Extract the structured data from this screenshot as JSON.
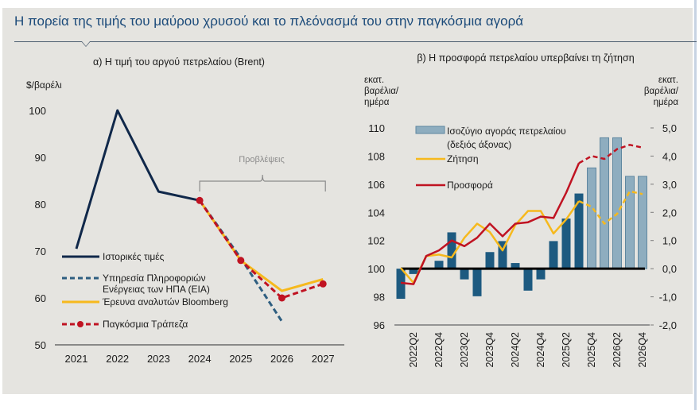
{
  "page": {
    "title": "Η πορεία της τιμής του μαύρου χρυσού και το πλεόνασμά του στην παγκόσμια αγορά"
  },
  "chart_data": [
    {
      "type": "line",
      "title": "α) Η τιμή του αργού πετρελαίου (Brent)",
      "ylabel": "$/βαρέλι",
      "xlabel": "",
      "ylim": [
        50,
        100
      ],
      "yticks": [
        "100",
        "90",
        "80",
        "70",
        "60",
        "50"
      ],
      "ytick_values": [
        100,
        90,
        80,
        70,
        60,
        50
      ],
      "x": [
        "2021",
        "2022",
        "2023",
        "2024",
        "2025",
        "2026",
        "2027"
      ],
      "annotation": "Προβλέψεις",
      "annotation_span": [
        "2024",
        "2027"
      ],
      "legend_position": "left",
      "series": [
        {
          "name": "Ιστορικές τιμές",
          "style": "solid",
          "color": "#10284a",
          "values": [
            70.5,
            100,
            82.7,
            80.8,
            null,
            null,
            null
          ]
        },
        {
          "name": "Υπηρεσία Πληροφοριών Ενέργειας των ΗΠΑ (EIA)",
          "style": "dashed",
          "color": "#2e5e80",
          "values": [
            null,
            null,
            null,
            80.8,
            68.5,
            55,
            null
          ]
        },
        {
          "name": "Έρευνα αναλυτών Bloomberg",
          "style": "solid",
          "color": "#f6b91d",
          "values": [
            null,
            null,
            null,
            80.8,
            68,
            61.5,
            64
          ]
        },
        {
          "name": "Παγκόσμια Τράπεζα",
          "style": "dashed-markers",
          "color": "#c01322",
          "values": [
            null,
            null,
            null,
            80.8,
            68,
            60,
            63
          ]
        }
      ]
    },
    {
      "type": "bar",
      "title": "β) Η προσφορά πετρελαίου υπερβαίνει τη ζήτηση",
      "ylabel_left": "εκατ. βαρέλια/ ημέρα",
      "ylabel_right": "εκατ. βαρέλια/ ημέρα",
      "ylim_left": [
        96,
        110
      ],
      "ylim_right": [
        -2.0,
        5.0
      ],
      "yticks_left": [
        "110",
        "108",
        "106",
        "104",
        "102",
        "100",
        "98",
        "96"
      ],
      "ytick_values_left": [
        110,
        108,
        106,
        104,
        102,
        100,
        98,
        96
      ],
      "yticks_right": [
        "5,0",
        "4,0",
        "3,0",
        "2,0",
        "1,0",
        "0,0",
        "-1,0",
        "-2,0"
      ],
      "ytick_values_right": [
        5,
        4,
        3,
        2,
        1,
        0,
        -1,
        -2
      ],
      "x": [
        "2022Q1",
        "2022Q2",
        "2022Q3",
        "2022Q4",
        "2023Q1",
        "2023Q2",
        "2023Q3",
        "2023Q4",
        "2024Q1",
        "2024Q2",
        "2024Q3",
        "2024Q4",
        "2025Q1",
        "2025Q2",
        "2025Q3",
        "2025Q4",
        "2026Q1",
        "2026Q2",
        "2026Q3",
        "2026Q4"
      ],
      "xtick_labels": [
        "2022Q2",
        "2022Q4",
        "2023Q2",
        "2023Q4",
        "2024Q2",
        "2024Q4",
        "2025Q2",
        "2025Q4",
        "2026Q2",
        "2026Q4"
      ],
      "forecast_start": "2025Q4",
      "legend_position": "top-left",
      "series": [
        {
          "name": "Ισοζύγιο αγοράς πετρελαίου (δεξιός άξονας)",
          "kind": "bar",
          "axis": "right",
          "color": "#1d5a80",
          "forecast_color": "#8eadbf",
          "values": [
            -1.07,
            -0.19,
            0,
            0.28,
            1.29,
            -0.38,
            -0.98,
            0.59,
            0.98,
            0.2,
            -0.78,
            -0.38,
            0.98,
            1.78,
            2.67,
            3.58,
            4.65,
            4.65,
            3.28,
            3.28
          ]
        },
        {
          "name": "Ζήτηση",
          "kind": "line",
          "axis": "left",
          "color": "#f6b91d",
          "values": [
            100.05,
            99.0,
            100.9,
            101.0,
            100.8,
            102.2,
            103.2,
            102.6,
            101.3,
            103.1,
            104.1,
            104.1,
            102.5,
            103.5,
            104.8,
            104.4,
            103.2,
            103.9,
            105.5,
            105.3
          ]
        },
        {
          "name": "Προσφορά",
          "kind": "line",
          "axis": "left",
          "color": "#c01322",
          "values": [
            99.0,
            98.9,
            100.9,
            101.3,
            102.0,
            101.6,
            102.2,
            103.2,
            102.3,
            103.2,
            103.3,
            103.7,
            103.6,
            105.4,
            107.5,
            108.0,
            107.8,
            108.5,
            108.8,
            108.6
          ]
        }
      ]
    }
  ]
}
